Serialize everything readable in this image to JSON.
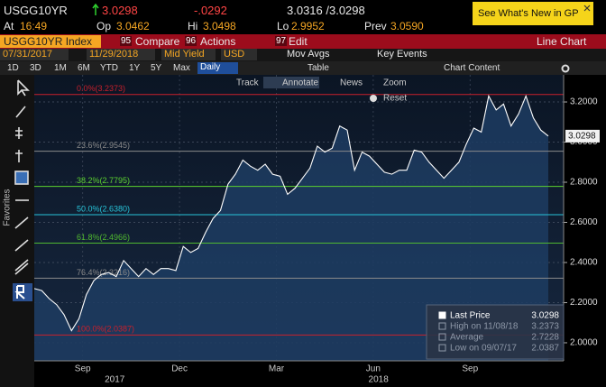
{
  "header": {
    "ticker": "USGG10YR",
    "last": "3.0298",
    "change": "-.0292",
    "bid_ask": "3.0316 /3.0298",
    "whats_new": "See What's New in GP"
  },
  "quote": [
    {
      "label": "At",
      "value": "16:49"
    },
    {
      "label": "Op",
      "value": "3.0462"
    },
    {
      "label": "Hi",
      "value": "3.0498"
    },
    {
      "label": "Lo",
      "value": "2.9952"
    },
    {
      "label": "Prev",
      "value": "3.0590"
    }
  ],
  "menu": {
    "security": "USGG10YR Index",
    "items": [
      {
        "code": "95",
        "label": "Compare"
      },
      {
        "code": "96",
        "label": "Actions"
      },
      {
        "code": "97",
        "label": "Edit"
      }
    ],
    "view": "Line Chart"
  },
  "settings": {
    "start": "07/31/2017",
    "end": "11/29/2018",
    "field": "Mid Yield",
    "currency": "USD",
    "mov_avgs": "Mov Avgs",
    "key_events": "Key Events"
  },
  "periods": [
    "1D",
    "3D",
    "1M",
    "6M",
    "YTD",
    "1Y",
    "5Y",
    "Max"
  ],
  "frequency": "Daily",
  "table": "Table",
  "chart_content": "Chart Content",
  "chart_tools": [
    "Track",
    "Annotate",
    "News",
    "Zoom",
    "Reset"
  ],
  "sidebar": {
    "favorites": "Favorites"
  },
  "chart_data": {
    "type": "line",
    "series": [
      {
        "name": "Last Price",
        "color": "#ffffff",
        "fill": "#1d3c62",
        "values": [
          2.27,
          2.26,
          2.22,
          2.19,
          2.14,
          2.06,
          2.12,
          2.24,
          2.31,
          2.34,
          2.35,
          2.33,
          2.41,
          2.37,
          2.33,
          2.37,
          2.34,
          2.37,
          2.37,
          2.36,
          2.48,
          2.45,
          2.47,
          2.55,
          2.62,
          2.66,
          2.79,
          2.84,
          2.91,
          2.88,
          2.86,
          2.89,
          2.84,
          2.83,
          2.74,
          2.77,
          2.82,
          2.87,
          2.98,
          2.95,
          2.97,
          3.08,
          3.06,
          2.86,
          2.95,
          2.93,
          2.89,
          2.85,
          2.84,
          2.86,
          2.86,
          2.96,
          2.95,
          2.9,
          2.86,
          2.82,
          2.86,
          2.9,
          2.99,
          3.07,
          3.05,
          3.23,
          3.16,
          3.19,
          3.08,
          3.14,
          3.23,
          3.12,
          3.06,
          3.03
        ]
      }
    ],
    "xlim": [
      0,
      69
    ],
    "xticks": [
      {
        "value": 6.5,
        "label": "Sep"
      },
      {
        "value": 19.5,
        "label": "Dec"
      },
      {
        "value": 32.5,
        "label": "Mar"
      },
      {
        "value": 45.5,
        "label": "Jun"
      },
      {
        "value": 58.5,
        "label": "Sep"
      }
    ],
    "year_labels": [
      {
        "value": 10.8,
        "label": "2017"
      },
      {
        "value": 46.2,
        "label": "2018"
      }
    ],
    "ylim": [
      1.91,
      3.335
    ],
    "yticks": [
      {
        "value": 2,
        "label": "2.0000"
      },
      {
        "value": 2.2,
        "label": "2.2000"
      },
      {
        "value": 2.4,
        "label": "2.4000"
      },
      {
        "value": 2.6,
        "label": "2.6000"
      },
      {
        "value": 2.8,
        "label": "2.8000"
      },
      {
        "value": 3,
        "label": "3.0000"
      },
      {
        "value": 3.2,
        "label": "3.2000"
      }
    ],
    "grid": true,
    "last_value": 3.0298,
    "fibonacci": [
      {
        "label": "0.0%(3.2373)",
        "value": 3.2373,
        "color": "#c8202c"
      },
      {
        "label": "23.6%(2.9545)",
        "value": 2.9545,
        "color": "#8a8a8a"
      },
      {
        "label": "38.2%(2.7795)",
        "value": 2.7795,
        "color": "#5bd12f"
      },
      {
        "label": "50.0%(2.6380)",
        "value": 2.638,
        "color": "#27c3d8"
      },
      {
        "label": "61.8%(2.4966)",
        "value": 2.4966,
        "color": "#4fb830"
      },
      {
        "label": "76.4%(2.3216)",
        "value": 2.3216,
        "color": "#8a8a8a"
      },
      {
        "label": "100.0%(2.0387)",
        "value": 2.0387,
        "color": "#c8202c"
      }
    ],
    "legend": [
      {
        "label": "Last Price",
        "value": 3.0298
      },
      {
        "label": "High on 11/08/18",
        "value": 3.2373
      },
      {
        "label": "Average",
        "value": 2.7228
      },
      {
        "label": "Low on 09/07/17",
        "value": 2.0387
      }
    ]
  }
}
